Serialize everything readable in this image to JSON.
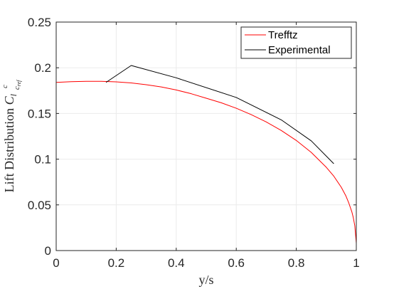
{
  "chart_data": {
    "type": "line",
    "xlabel": "y/s",
    "ylabel": "Lift Distribution ",
    "ylabel_math": {
      "symbol": "C",
      "subscript": "l",
      "frac_num": "c",
      "frac_den": "c",
      "frac_den_sub": "ref"
    },
    "xlim": [
      0,
      1
    ],
    "ylim": [
      0,
      0.25
    ],
    "x_ticks": [
      0,
      0.2,
      0.4,
      0.6,
      0.8,
      1
    ],
    "x_tick_labels": [
      "0",
      "0.2",
      "0.4",
      "0.6",
      "0.8",
      "1"
    ],
    "y_ticks": [
      0,
      0.05,
      0.1,
      0.15,
      0.2,
      0.25
    ],
    "y_tick_labels": [
      "0",
      "0.05",
      "0.1",
      "0.15",
      "0.2",
      "0.25"
    ],
    "grid": true,
    "legend_position": "top-right",
    "series": [
      {
        "name": "Trefftz",
        "color": "#ff0000",
        "x": [
          0,
          0.05,
          0.1,
          0.15,
          0.2,
          0.25,
          0.3,
          0.35,
          0.4,
          0.45,
          0.5,
          0.55,
          0.6,
          0.65,
          0.7,
          0.75,
          0.8,
          0.85,
          0.9,
          0.925,
          0.95,
          0.965,
          0.975,
          0.985,
          0.99,
          0.995,
          1.0
        ],
        "y": [
          0.184,
          0.1848,
          0.1852,
          0.1852,
          0.1846,
          0.1834,
          0.1815,
          0.179,
          0.1757,
          0.1716,
          0.1667,
          0.1617,
          0.1557,
          0.1487,
          0.1407,
          0.1314,
          0.1205,
          0.1074,
          0.0911,
          0.0814,
          0.0692,
          0.06,
          0.052,
          0.0425,
          0.036,
          0.027,
          0.008
        ]
      },
      {
        "name": "Experimental",
        "color": "#000000",
        "x": [
          0.166,
          0.25,
          0.4,
          0.6,
          0.75,
          0.85,
          0.925
        ],
        "y": [
          0.184,
          0.2025,
          0.189,
          0.1675,
          0.143,
          0.12,
          0.095
        ]
      }
    ]
  }
}
